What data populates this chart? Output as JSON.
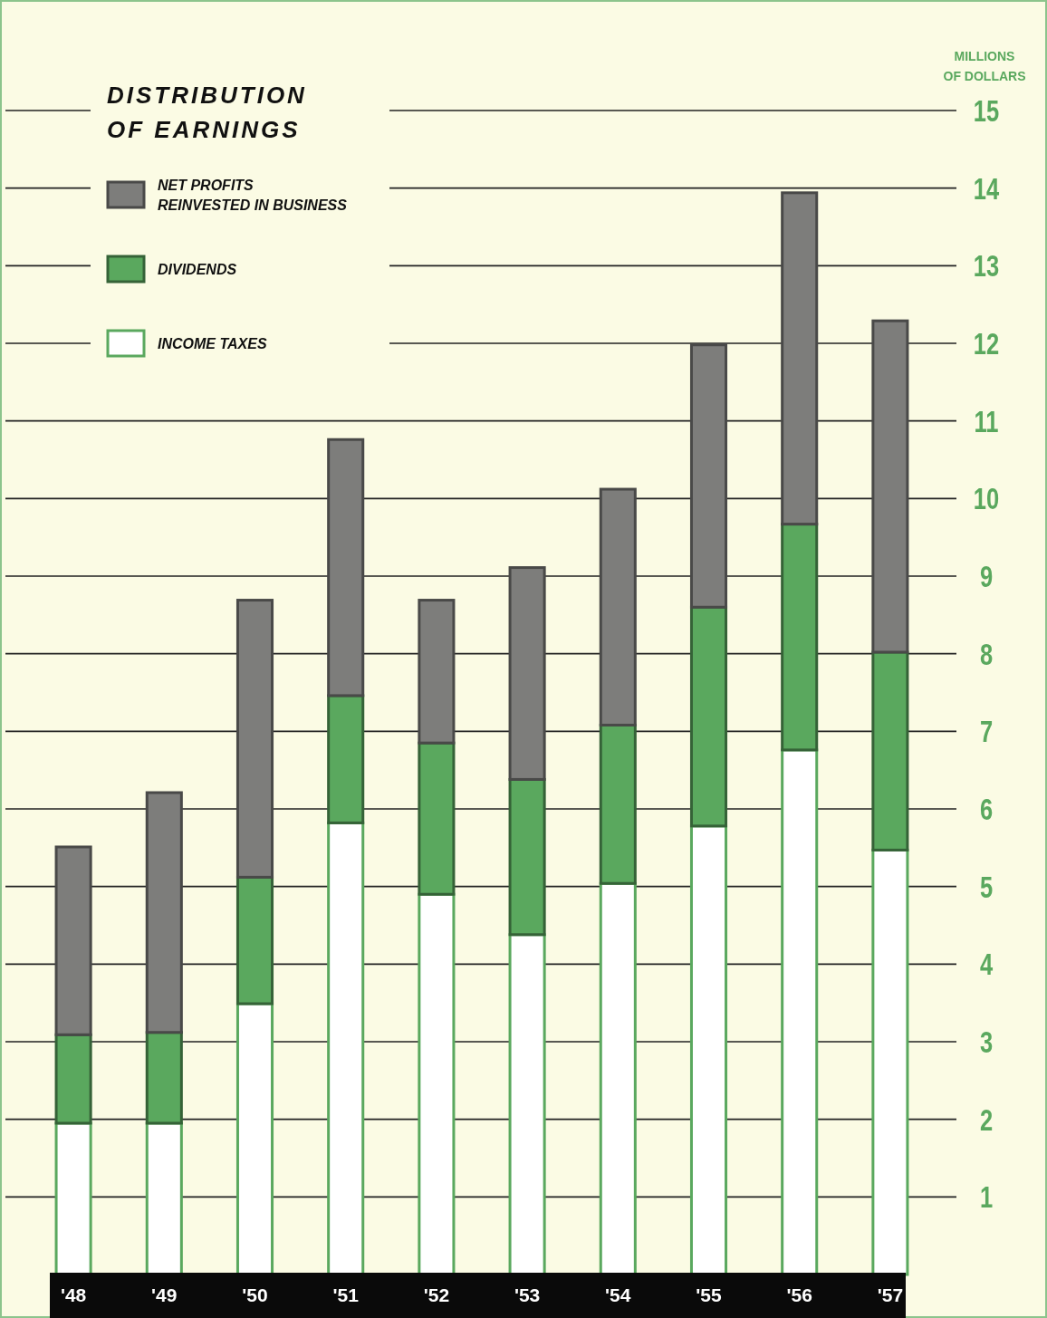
{
  "chart_data": {
    "type": "bar",
    "title": "DISTRIBUTION OF EARNINGS",
    "ylabel": "MILLIONS OF DOLLARS",
    "stacked": true,
    "legend": "top left",
    "grid": "y",
    "categories": [
      "'48",
      "'49",
      "'50",
      "'51",
      "'52",
      "'53",
      "'54",
      "'55",
      "'56",
      "'57"
    ],
    "series": [
      {
        "name": "INCOME TAXES",
        "color": "#ffffff",
        "values": [
          1.95,
          1.95,
          3.49,
          5.82,
          4.9,
          4.38,
          5.04,
          5.78,
          6.76,
          5.47
        ]
      },
      {
        "name": "DIVIDENDS",
        "color": "#5aa85e",
        "values": [
          1.14,
          1.17,
          1.63,
          1.64,
          1.95,
          2.0,
          2.04,
          2.82,
          2.91,
          2.55
        ]
      },
      {
        "name": "NET PROFITS REINVESTED IN BUSINESS",
        "color": "#7d7d7b",
        "values": [
          2.42,
          3.09,
          3.57,
          3.3,
          1.84,
          2.73,
          3.04,
          3.38,
          4.27,
          4.27
        ]
      }
    ],
    "ylim": [
      0,
      15
    ],
    "yticks": [
      1,
      2,
      3,
      4,
      5,
      6,
      7,
      8,
      9,
      10,
      11,
      12,
      13,
      14,
      15
    ]
  }
}
